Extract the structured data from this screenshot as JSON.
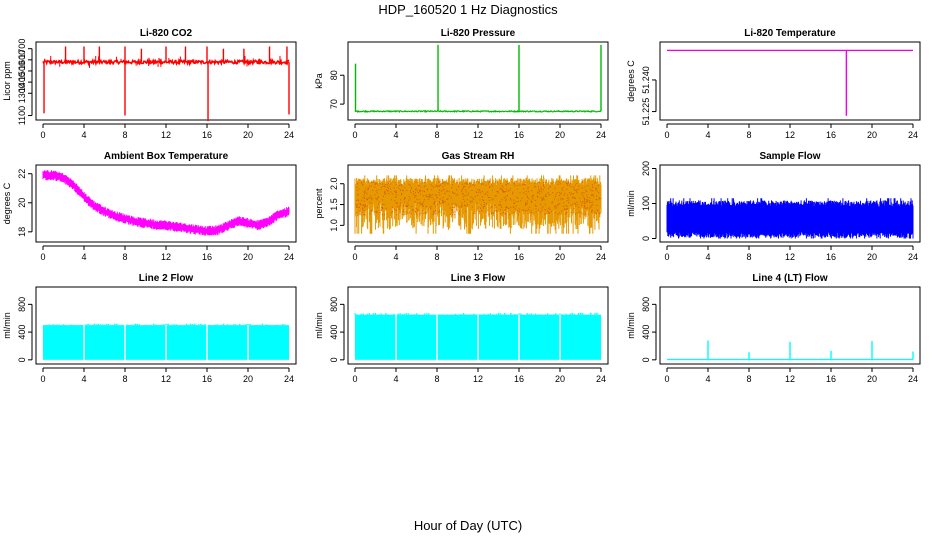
{
  "figure": {
    "title": "HDP_160520  1 Hz Diagnostics",
    "xlabel": "Hour of Day (UTC)"
  },
  "chart_data": [
    {
      "type": "line",
      "title": "Li-820 CO2",
      "ylabel": "Licor ppm",
      "color": "#ff0000",
      "style": "co2",
      "xlim": [
        0,
        24
      ],
      "ylim": [
        1060,
        1760
      ],
      "xticks": [
        0,
        4,
        8,
        12,
        16,
        20,
        24
      ],
      "yticks": [
        1100,
        1300,
        1400,
        1500,
        1600,
        1700
      ],
      "baseline": 1580,
      "spikes_up": [
        [
          2.2,
          1720
        ],
        [
          4,
          1720
        ],
        [
          5.5,
          1720
        ],
        [
          8,
          1720
        ],
        [
          9.6,
          1700
        ],
        [
          12,
          1720
        ],
        [
          13.9,
          1720
        ],
        [
          16,
          1720
        ],
        [
          17.6,
          1700
        ],
        [
          19.6,
          1700
        ],
        [
          22.1,
          1720
        ],
        [
          23.8,
          1720
        ]
      ],
      "spikes_down": [
        [
          0.1,
          1120
        ],
        [
          8,
          1100
        ],
        [
          16.1,
          1050
        ],
        [
          24,
          1110
        ]
      ]
    },
    {
      "type": "line",
      "title": "Li-820 Pressure",
      "ylabel": "kPa",
      "color": "#00bb00",
      "style": "pressure",
      "xlim": [
        0,
        24
      ],
      "ylim": [
        64.5,
        91.5
      ],
      "xticks": [
        0,
        4,
        8,
        12,
        16,
        20,
        24
      ],
      "yticks": [
        70,
        80
      ],
      "baseline": 67.5,
      "spikes_up": [
        [
          0.05,
          84
        ],
        [
          8.1,
          90.5
        ],
        [
          16,
          90.5
        ],
        [
          24,
          90.5
        ]
      ]
    },
    {
      "type": "line",
      "title": "Li-820 Temperature",
      "ylabel": "degrees C",
      "color": "#ee00ee",
      "style": "temperature",
      "xlim": [
        0,
        24
      ],
      "ylim": [
        51.221,
        51.258
      ],
      "xticks": [
        0,
        4,
        8,
        12,
        16,
        20,
        24
      ],
      "yticks": [
        51.225,
        51.24
      ],
      "ytick_labels": [
        "51.225",
        "51.240"
      ],
      "baseline": 51.254,
      "spikes_down": [
        [
          17.5,
          51.223
        ]
      ]
    },
    {
      "type": "line",
      "title": "Ambient Box Temperature",
      "ylabel": "degrees C",
      "color": "#ff00ff",
      "style": "noisy",
      "xlim": [
        0,
        24
      ],
      "ylim": [
        17.3,
        22.6
      ],
      "xticks": [
        0,
        4,
        8,
        12,
        16,
        20,
        24
      ],
      "yticks": [
        18,
        20,
        22
      ],
      "x": [
        0,
        1,
        2,
        3,
        4,
        5,
        6,
        7,
        8,
        9,
        10,
        11,
        12,
        13,
        14,
        15,
        16,
        17,
        18,
        19,
        20,
        21,
        22,
        23,
        24
      ],
      "y": [
        21.9,
        21.9,
        21.7,
        21.2,
        20.4,
        19.8,
        19.4,
        19.1,
        18.9,
        18.7,
        18.6,
        18.5,
        18.45,
        18.35,
        18.25,
        18.15,
        18.05,
        18.1,
        18.4,
        18.75,
        18.6,
        18.45,
        18.7,
        19.2,
        19.4
      ],
      "noise": 0.35
    },
    {
      "type": "line",
      "title": "Gas Stream RH",
      "ylabel": "percent",
      "color": "#e69900",
      "style": "band",
      "xlim": [
        0,
        24
      ],
      "ylim": [
        0.6,
        2.45
      ],
      "xticks": [
        0,
        4,
        8,
        12,
        16,
        20,
        24
      ],
      "yticks": [
        1.0,
        1.5,
        2.0
      ],
      "ytick_labels": [
        "1.0",
        "1.5",
        "2.0"
      ],
      "band_low": 1.25,
      "band_high": 2.05,
      "band_min": 0.8,
      "band_max": 2.2
    },
    {
      "type": "line",
      "title": "Sample Flow",
      "ylabel": "ml/min",
      "color": "#0000ff",
      "style": "band",
      "xlim": [
        0,
        24
      ],
      "ylim": [
        -10,
        210
      ],
      "xticks": [
        0,
        4,
        8,
        12,
        16,
        20,
        24
      ],
      "yticks": [
        0,
        100,
        200
      ],
      "band_low": 10,
      "band_high": 100,
      "band_min": 0,
      "band_max": 115
    },
    {
      "type": "line",
      "title": "Line 2 Flow",
      "ylabel": "ml/min",
      "color": "#00ffff",
      "style": "block",
      "xlim": [
        0,
        24
      ],
      "ylim": [
        -60,
        1050
      ],
      "xticks": [
        0,
        4,
        8,
        12,
        16,
        20,
        24
      ],
      "yticks": [
        0,
        400,
        800
      ],
      "level": 500,
      "gaps": [
        4,
        8,
        12,
        16,
        20
      ]
    },
    {
      "type": "line",
      "title": "Line 3 Flow",
      "ylabel": "ml/min",
      "color": "#00ffff",
      "style": "block",
      "xlim": [
        0,
        24
      ],
      "ylim": [
        -60,
        1050
      ],
      "xticks": [
        0,
        4,
        8,
        12,
        16,
        20,
        24
      ],
      "yticks": [
        0,
        400,
        800
      ],
      "level": 650,
      "gaps": [
        4,
        8,
        12,
        16,
        20
      ]
    },
    {
      "type": "line",
      "title": "Line 4 (LT) Flow",
      "ylabel": "ml/min",
      "color": "#00ffff",
      "style": "pulse",
      "xlim": [
        0,
        24
      ],
      "ylim": [
        -60,
        1050
      ],
      "xticks": [
        0,
        4,
        8,
        12,
        16,
        20,
        24
      ],
      "yticks": [
        0,
        400,
        800
      ],
      "level": 5,
      "spikes_up": [
        [
          4,
          280
        ],
        [
          8,
          110
        ],
        [
          12,
          260
        ],
        [
          16,
          130
        ],
        [
          20,
          270
        ],
        [
          24,
          120
        ]
      ]
    }
  ]
}
